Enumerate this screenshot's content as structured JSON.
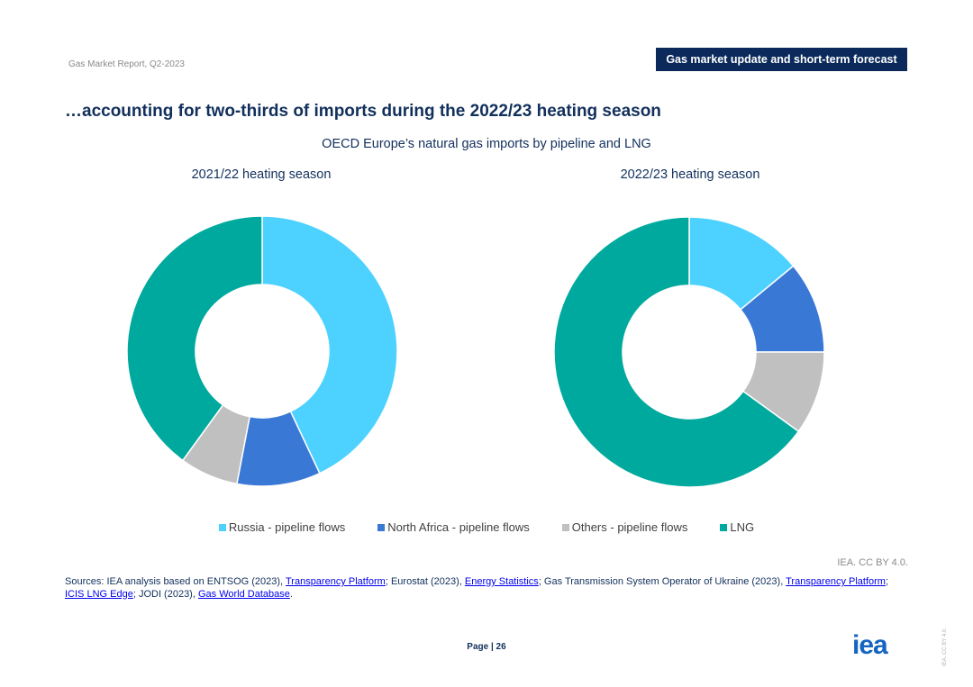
{
  "header": {
    "report_label": "Gas Market Report, Q2-2023",
    "section_tag": "Gas market update and short-term forecast"
  },
  "slide_title": "…accounting for two-thirds of imports during the 2022/23 heating season",
  "chart_data": {
    "type": "pie",
    "title": "OECD Europe’s natural gas imports by pipeline and LNG",
    "categories": [
      "Russia - pipeline flows",
      "North Africa - pipeline flows",
      "Others - pipeline flows",
      "LNG"
    ],
    "colors": [
      "#4dd2ff",
      "#3a78d6",
      "#c0c0c0",
      "#00a99d"
    ],
    "donut": true,
    "legend_position": "bottom",
    "charts": [
      {
        "subtitle": "2021/22 heating season",
        "values": [
          43,
          10,
          7,
          40
        ]
      },
      {
        "subtitle": "2022/23 heating season",
        "values": [
          14,
          11,
          10,
          65
        ]
      }
    ]
  },
  "credit": "IEA. CC BY 4.0.",
  "sources": {
    "prefix": "Sources: IEA analysis based on ENTSOG (2023), ",
    "link1": "Transparency Platform",
    "mid1": "; Eurostat (2023), ",
    "link2": "Energy Statistics",
    "mid2": "; Gas Transmission System Operator of Ukraine (2023), ",
    "link3": "Transparency Platform",
    "mid3": "; ",
    "link4": "ICIS LNG Edge",
    "mid4": "; JODI (2023), ",
    "link5": "Gas World Database",
    "suffix": "."
  },
  "footer": {
    "page_label": "Page | 26",
    "logo_text": "iea",
    "vertical_credit": "IEA. CC BY 4.0."
  }
}
